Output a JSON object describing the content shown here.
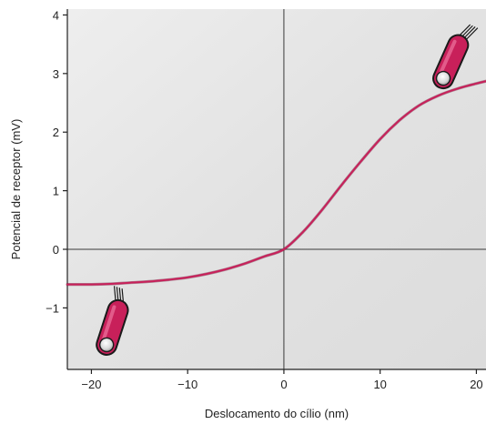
{
  "chart_data": {
    "type": "line",
    "title": "",
    "xlabel": "Deslocamento do cílio (nm)",
    "ylabel": "Potencial de receptor (mV)",
    "xlim": [
      -22.5,
      21
    ],
    "ylim": [
      -2.05,
      4.1
    ],
    "x_ticks": [
      -20,
      -10,
      0,
      10,
      20
    ],
    "x_tick_labels": [
      "−20",
      "−10",
      "0",
      "10",
      "20"
    ],
    "y_ticks": [
      -1,
      0,
      1,
      2,
      3,
      4
    ],
    "y_tick_labels": [
      "−1",
      "0",
      "1",
      "2",
      "3",
      "4"
    ],
    "grid": false,
    "zero_lines": true,
    "series": [
      {
        "color": "#c8205a",
        "x": [
          -22.5,
          -20,
          -18,
          -16,
          -14,
          -12,
          -10,
          -8,
          -6,
          -4,
          -2,
          0,
          2,
          4,
          6,
          8,
          10,
          12,
          14,
          16,
          18,
          20,
          21
        ],
        "y": [
          -0.6,
          -0.6,
          -0.59,
          -0.57,
          -0.55,
          -0.52,
          -0.48,
          -0.42,
          -0.34,
          -0.24,
          -0.12,
          0.0,
          0.3,
          0.68,
          1.1,
          1.5,
          1.88,
          2.2,
          2.45,
          2.62,
          2.74,
          2.83,
          2.87
        ]
      }
    ],
    "colors": {
      "background": "#e4e4e4",
      "curve": "#c8205a",
      "cell_body": "#c8205a",
      "cell_outline": "#1a1a1a"
    },
    "annotations": [
      {
        "icon": "hair-cell-depolarized-icon",
        "meaning": "cilia deflected toward positive displacement"
      },
      {
        "icon": "hair-cell-hyperpolarized-icon",
        "meaning": "cilia deflected toward negative displacement"
      }
    ]
  }
}
